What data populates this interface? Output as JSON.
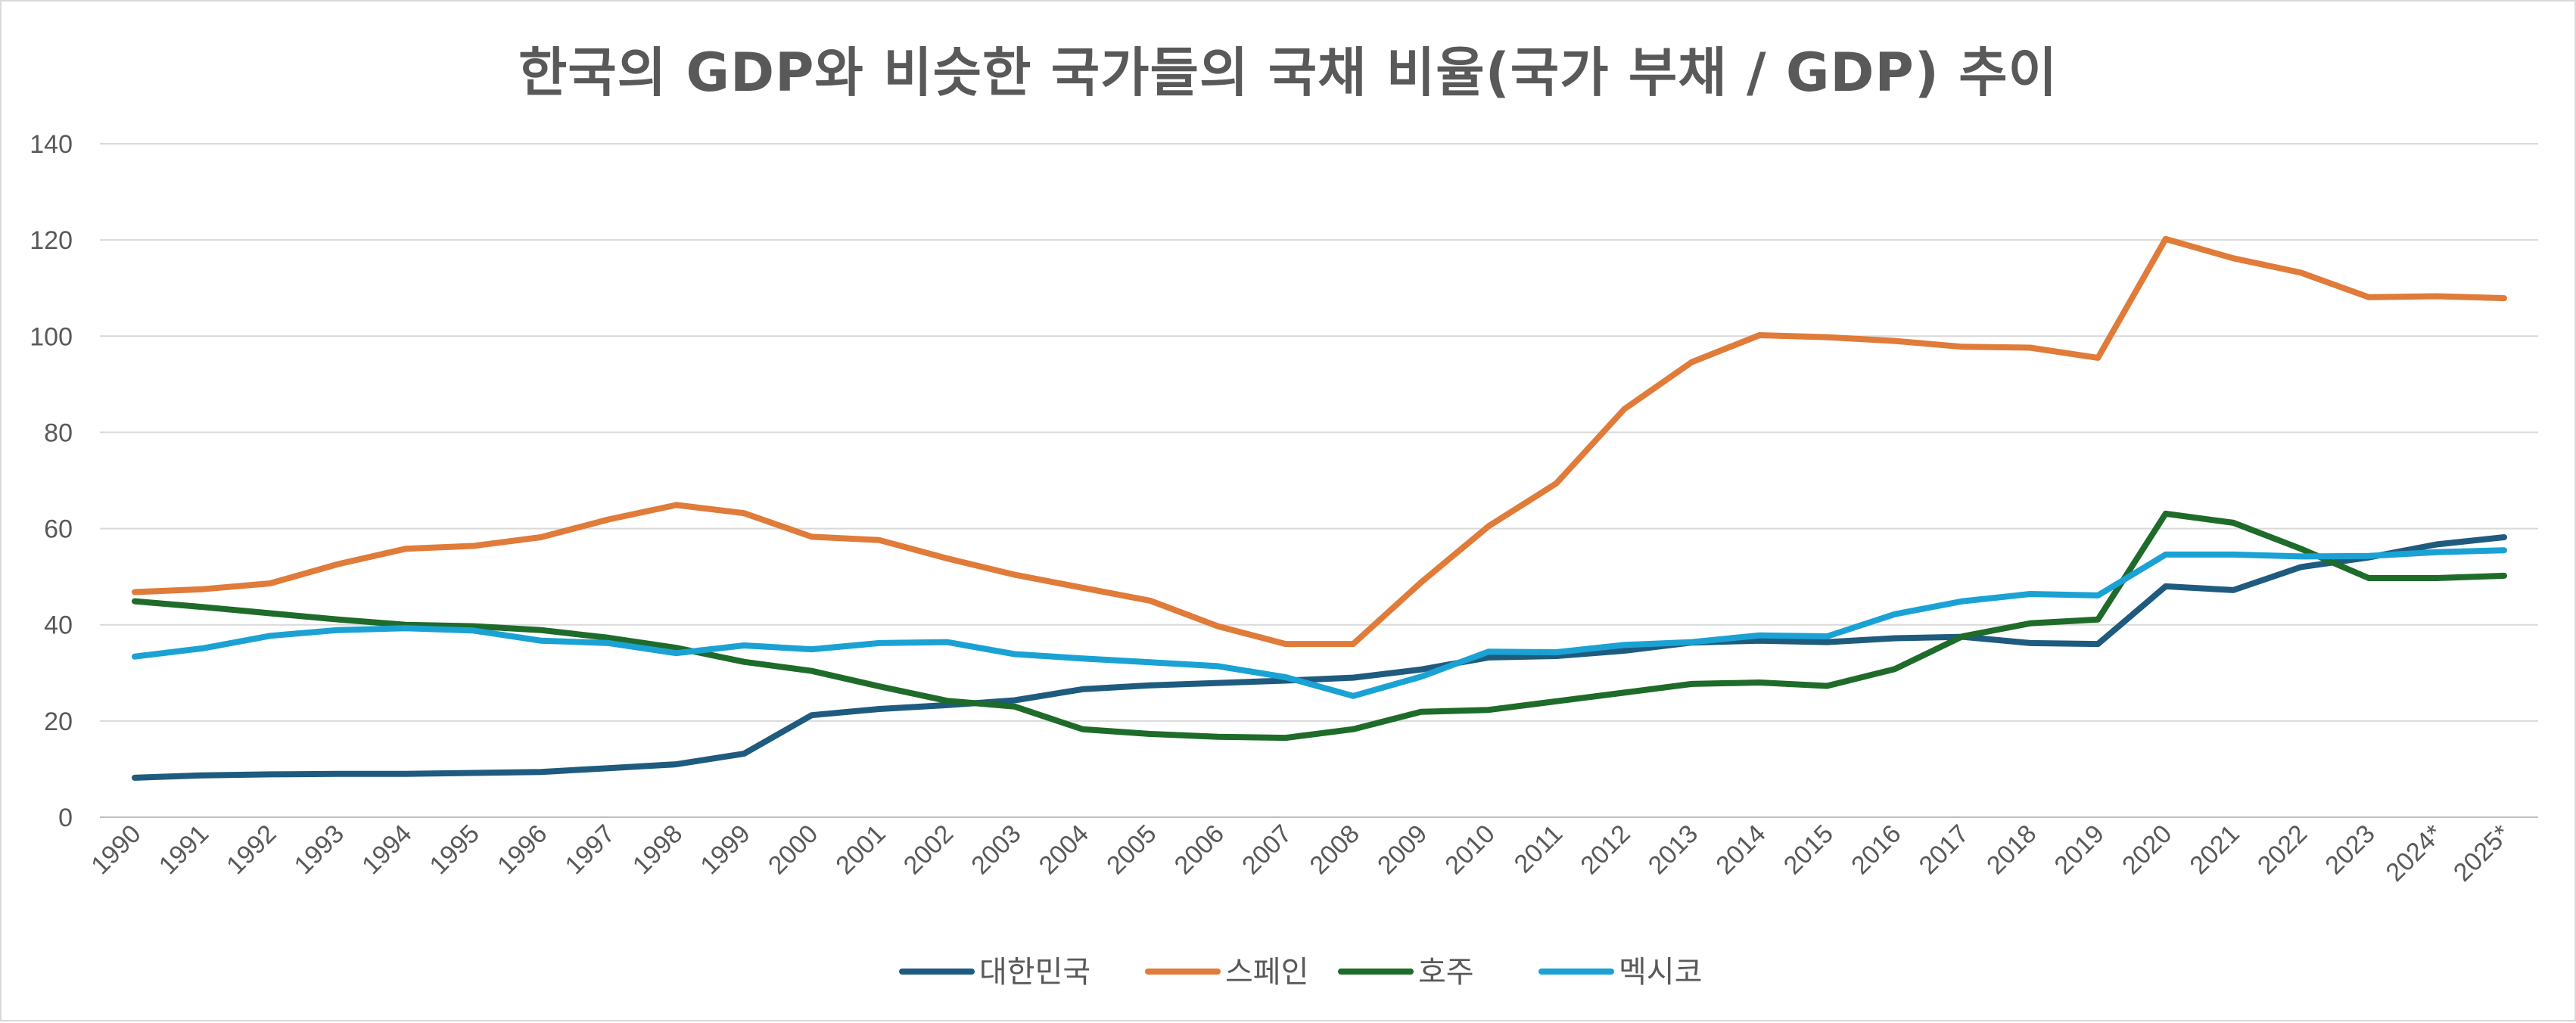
{
  "chart_data": {
    "type": "line",
    "title": "한국의 GDP와 비슷한 국가들의 국채 비율(국가 부채 / GDP) 추이",
    "xlabel": "",
    "ylabel": "",
    "ylim": [
      0,
      140
    ],
    "yticks": [
      "0",
      "20",
      "40",
      "60",
      "80",
      "100",
      "120",
      "140"
    ],
    "grid": true,
    "legend_position": "bottom",
    "categories": [
      "1990",
      "1991",
      "1992",
      "1993",
      "1994",
      "1995",
      "1996",
      "1997",
      "1998",
      "1999",
      "2000",
      "2001",
      "2002",
      "2003",
      "2004",
      "2005",
      "2006",
      "2007",
      "2008",
      "2009",
      "2010",
      "2011",
      "2012",
      "2013",
      "2014",
      "2015",
      "2016",
      "2017",
      "2018",
      "2019",
      "2020",
      "2021",
      "2022",
      "2023",
      "2024*",
      "2025*"
    ],
    "series": [
      {
        "name": "대한민국",
        "color": "#1f5b7e",
        "values": [
          8.2,
          8.7,
          8.9,
          9.0,
          9.0,
          9.2,
          9.4,
          10.2,
          11.0,
          13.2,
          21.2,
          22.5,
          23.3,
          24.3,
          26.6,
          27.4,
          27.9,
          28.4,
          29.0,
          30.7,
          33.2,
          33.5,
          34.6,
          36.3,
          36.7,
          36.4,
          37.2,
          37.5,
          36.2,
          36.0,
          48.0,
          47.2,
          52.0,
          54.0,
          56.7,
          58.2
        ]
      },
      {
        "name": "스페인",
        "color": "#e07b39",
        "values": [
          46.8,
          47.4,
          48.6,
          52.6,
          55.8,
          56.4,
          58.2,
          61.9,
          64.9,
          63.2,
          58.3,
          57.6,
          53.8,
          50.4,
          47.7,
          45.0,
          39.7,
          36.0,
          36.0,
          48.8,
          60.5,
          69.4,
          84.8,
          94.6,
          100.2,
          99.8,
          99.0,
          97.8,
          97.6,
          95.5,
          120.2,
          116.2,
          113.2,
          108.1,
          108.3,
          107.9
        ]
      },
      {
        "name": "호주",
        "color": "#1e6b2a",
        "values": [
          44.9,
          43.7,
          42.4,
          41.1,
          40.0,
          39.7,
          38.9,
          37.3,
          35.2,
          32.3,
          30.4,
          27.2,
          24.2,
          23.0,
          18.3,
          17.3,
          16.7,
          16.5,
          18.3,
          21.9,
          22.3,
          24.1,
          25.9,
          27.7,
          28.0,
          27.3,
          30.8,
          37.6,
          40.3,
          41.1,
          63.1,
          61.2,
          55.8,
          49.7,
          49.7,
          50.2
        ]
      },
      {
        "name": "멕시코",
        "color": "#1aa2d4",
        "values": [
          33.4,
          35.1,
          37.7,
          38.9,
          39.3,
          38.8,
          36.7,
          36.2,
          34.1,
          35.7,
          34.9,
          36.2,
          36.4,
          33.9,
          33.0,
          32.2,
          31.4,
          29.1,
          25.2,
          29.2,
          34.4,
          34.3,
          35.8,
          36.4,
          37.8,
          37.6,
          42.2,
          44.9,
          46.4,
          46.1,
          54.6,
          54.6,
          54.2,
          54.3,
          55.1,
          55.5
        ]
      }
    ]
  }
}
